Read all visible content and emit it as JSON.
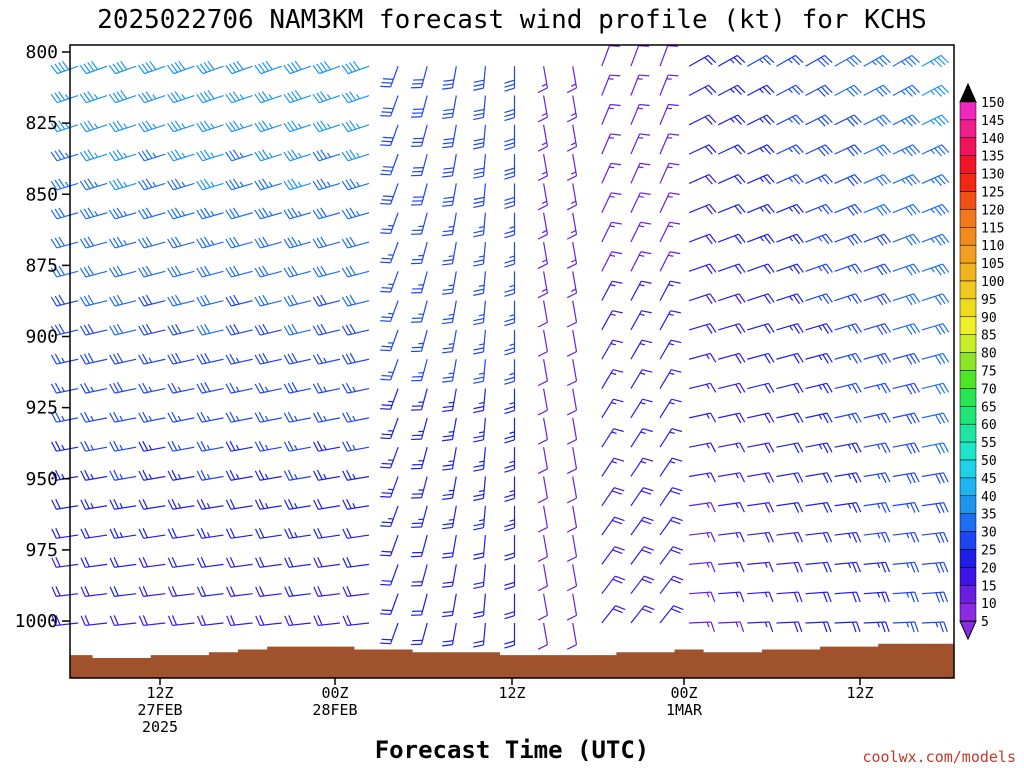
{
  "chart_data": {
    "type": "wind-barb-profile",
    "title": "2025022706 NAM3KM forecast wind profile (kt) for KCHS",
    "xlabel": "Forecast Time (UTC)",
    "ylabel": "",
    "credit": "coolwx.com/models",
    "y_axis": {
      "unit": "hPa",
      "ticks": [
        800,
        825,
        850,
        875,
        900,
        925,
        950,
        975,
        1000
      ],
      "range": [
        800,
        1020
      ]
    },
    "x_axis": {
      "ticks": [
        {
          "line1": "12Z",
          "line2": "27FEB",
          "line3": "2025"
        },
        {
          "line1": "00Z",
          "line2": "28FEB",
          "line3": ""
        },
        {
          "line1": "12Z",
          "line2": "",
          "line3": ""
        },
        {
          "line1": "00Z",
          "line2": "1MAR",
          "line3": ""
        },
        {
          "line1": "12Z",
          "line2": "",
          "line3": ""
        }
      ]
    },
    "colorbar": {
      "levels": [
        5,
        10,
        15,
        20,
        25,
        30,
        35,
        40,
        45,
        50,
        55,
        60,
        65,
        70,
        75,
        80,
        85,
        90,
        95,
        100,
        105,
        110,
        115,
        120,
        125,
        130,
        135,
        140,
        145,
        150
      ],
      "colors": [
        "#8a2be2",
        "#6a1ee0",
        "#3c14e6",
        "#1e1ee6",
        "#1e46f0",
        "#1e6ef0",
        "#1e96f0",
        "#1eb4f0",
        "#1ed2e6",
        "#1ee6c8",
        "#1ee6a0",
        "#1ee678",
        "#28e650",
        "#50e628",
        "#8ce628",
        "#c8f028",
        "#f0f028",
        "#f0dc1e",
        "#f0c81e",
        "#f0b41e",
        "#f0a01e",
        "#f08c1e",
        "#f0781e",
        "#f05014",
        "#f02814",
        "#f01428",
        "#f0145a",
        "#f01e8c",
        "#f028be",
        "#e628e6"
      ]
    },
    "terrain_color": "#a0522d"
  }
}
